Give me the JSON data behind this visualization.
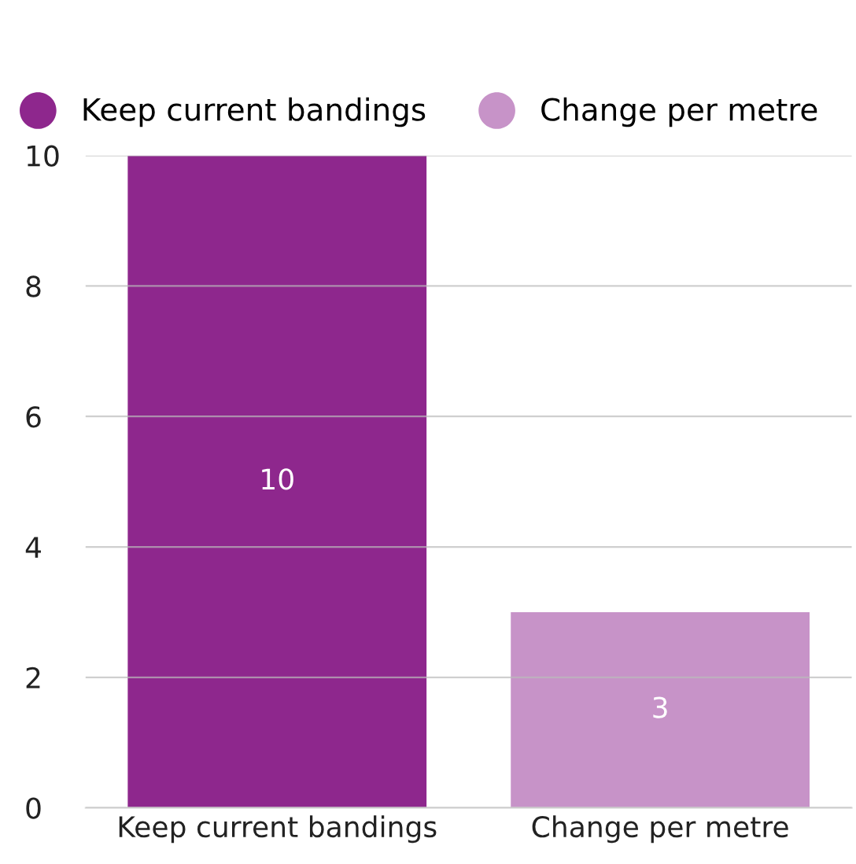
{
  "chart_data": {
    "type": "bar",
    "categories": [
      "Keep current bandings",
      "Change per metre"
    ],
    "series": [
      {
        "name": "Keep current bandings",
        "color": "#8e278d",
        "values": [
          10,
          null
        ]
      },
      {
        "name": "Change per metre",
        "color": "#c793c8",
        "values": [
          null,
          3
        ]
      }
    ],
    "ylim": [
      0,
      10
    ],
    "yticks": [
      0,
      2,
      4,
      6,
      8,
      10
    ],
    "grid": "y",
    "legend": "top",
    "data_labels": true
  }
}
